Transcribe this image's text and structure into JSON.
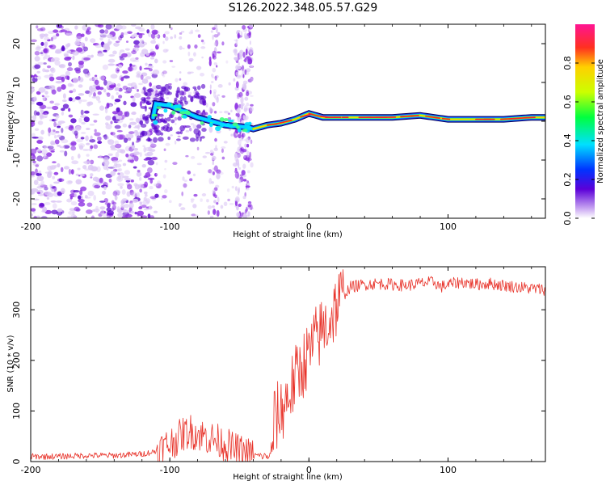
{
  "title": "S126.2022.348.05.57.G29",
  "colors": {
    "snr_line": "#e8332a",
    "scatter_low": "#dcc8f5",
    "scatter_mid": "#8a2be2",
    "scatter_high": "#5500cc",
    "band_peak": "#ff2020"
  },
  "colorbar": {
    "label": "Normalized spectral amplitude",
    "range": [
      0,
      1
    ],
    "ticks": [
      0.0,
      0.2,
      0.4,
      0.6,
      0.8
    ],
    "tick_labels": [
      "0.0",
      "0.2",
      "0.4",
      "0.6",
      "0.8"
    ]
  },
  "chart_data": [
    {
      "type": "heatmap",
      "name": "spectrogram",
      "xlabel": "Height of straight line (km)",
      "ylabel": "Frequency (Hz)",
      "xlim": [
        -200,
        170
      ],
      "ylim": [
        -25,
        25
      ],
      "xticks": [
        -200,
        -100,
        0,
        100
      ],
      "xtick_labels": [
        "-200",
        "-100",
        "0",
        "100"
      ],
      "yticks": [
        -20,
        -10,
        0,
        10,
        20
      ],
      "ytick_labels": [
        "-20",
        "-10",
        "0",
        "10",
        "20"
      ],
      "band_path": [
        [
          -110,
          4.5
        ],
        [
          -100,
          4.0
        ],
        [
          -90,
          2.5
        ],
        [
          -80,
          1.0
        ],
        [
          -70,
          0.0
        ],
        [
          -60,
          -1.0
        ],
        [
          -45,
          -1.5
        ],
        [
          -40,
          -2.0
        ],
        [
          -30,
          -1.0
        ],
        [
          -20,
          -0.5
        ],
        [
          -10,
          0.5
        ],
        [
          0,
          2.0
        ],
        [
          10,
          1.0
        ],
        [
          20,
          1.0
        ],
        [
          40,
          1.0
        ],
        [
          60,
          1.0
        ],
        [
          80,
          1.5
        ],
        [
          90,
          1.0
        ],
        [
          100,
          0.5
        ],
        [
          120,
          0.5
        ],
        [
          140,
          0.5
        ],
        [
          160,
          1.0
        ],
        [
          170,
          1.0
        ]
      ]
    },
    {
      "type": "line",
      "name": "snr",
      "xlabel": "Height of straight line (km)",
      "ylabel": "SNR (10 * v/v)",
      "xlim": [
        -200,
        170
      ],
      "ylim": [
        0,
        385
      ],
      "xticks": [
        -200,
        -100,
        0,
        100
      ],
      "xtick_labels": [
        "-200",
        "-100",
        "0",
        "100"
      ],
      "yticks": [
        0,
        100,
        200,
        300
      ],
      "ytick_labels": [
        "0",
        "100",
        "200",
        "300"
      ],
      "x": [
        -200,
        -180,
        -160,
        -140,
        -120,
        -110,
        -100,
        -95,
        -90,
        -85,
        -80,
        -75,
        -70,
        -65,
        -60,
        -55,
        -50,
        -45,
        -40,
        -30,
        -27,
        -25,
        -20,
        -15,
        -10,
        -5,
        0,
        5,
        10,
        15,
        20,
        25,
        30,
        40,
        50,
        60,
        70,
        80,
        90,
        95,
        100,
        110,
        120,
        130,
        140,
        150,
        160,
        170
      ],
      "y": [
        10,
        10,
        12,
        12,
        15,
        20,
        35,
        45,
        55,
        60,
        55,
        50,
        45,
        40,
        35,
        25,
        20,
        15,
        12,
        10,
        12,
        80,
        100,
        130,
        160,
        190,
        210,
        240,
        260,
        280,
        310,
        330,
        345,
        350,
        352,
        350,
        348,
        352,
        355,
        345,
        350,
        355,
        350,
        352,
        348,
        345,
        342,
        340
      ]
    }
  ]
}
